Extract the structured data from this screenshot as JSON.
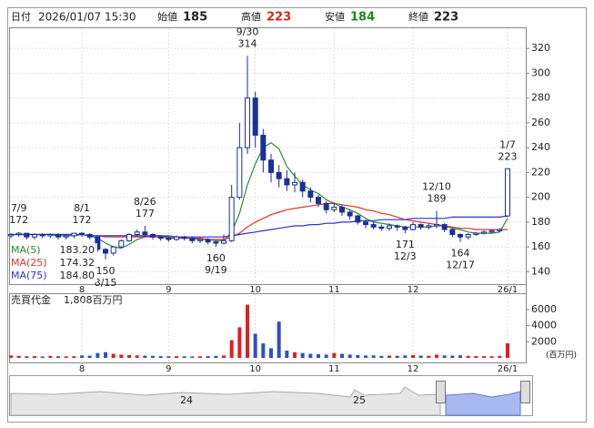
{
  "header": {
    "date_label": "日付",
    "datetime": "2026/01/07 15:30",
    "open_label": "始値",
    "open": 185,
    "high_label": "高値",
    "high": 223,
    "low_label": "安値",
    "low": 184,
    "close_label": "終値",
    "close": 223
  },
  "chart_data": {
    "type": "candlestick",
    "categories": [
      null,
      null,
      null,
      null,
      null,
      null,
      null,
      null,
      null,
      "8",
      null,
      null,
      null,
      null,
      null,
      null,
      null,
      null,
      null,
      null,
      "9",
      null,
      null,
      null,
      null,
      null,
      null,
      null,
      null,
      null,
      null,
      "10",
      null,
      null,
      null,
      null,
      null,
      null,
      null,
      null,
      null,
      "11",
      null,
      null,
      null,
      null,
      null,
      null,
      null,
      null,
      null,
      "12",
      null,
      null,
      null,
      null,
      null,
      null,
      null,
      null,
      null,
      null,
      null,
      "26/1"
    ],
    "open": [
      169,
      170,
      171,
      168,
      170,
      169,
      170,
      168,
      169,
      171,
      170,
      168,
      158,
      155,
      160,
      165,
      170,
      172,
      170,
      168,
      167,
      166,
      168,
      167,
      165,
      166,
      164,
      163,
      165,
      200,
      240,
      280,
      250,
      230,
      220,
      215,
      210,
      212,
      205,
      200,
      195,
      190,
      192,
      188,
      185,
      180,
      178,
      176,
      175,
      177,
      176,
      174,
      178,
      176,
      177,
      178,
      174,
      170,
      168,
      170,
      171,
      172,
      173,
      185
    ],
    "high": [
      171,
      172,
      171,
      171,
      171,
      171,
      171,
      170,
      171,
      172,
      171,
      169,
      159,
      161,
      166,
      171,
      174,
      177,
      171,
      169,
      168,
      169,
      169,
      168,
      167,
      167,
      165,
      170,
      210,
      260,
      314,
      285,
      255,
      235,
      226,
      222,
      220,
      214,
      208,
      202,
      197,
      196,
      194,
      190,
      186,
      182,
      180,
      178,
      179,
      178,
      177,
      180,
      179,
      179,
      189,
      179,
      175,
      171,
      171,
      172,
      173,
      174,
      175,
      223
    ],
    "low": [
      167,
      168,
      166,
      166,
      167,
      167,
      166,
      166,
      167,
      168,
      166,
      156,
      150,
      153,
      159,
      164,
      169,
      168,
      166,
      165,
      164,
      165,
      165,
      163,
      163,
      162,
      160,
      162,
      164,
      198,
      235,
      240,
      220,
      212,
      208,
      205,
      204,
      200,
      196,
      192,
      187,
      188,
      185,
      182,
      178,
      175,
      174,
      173,
      173,
      173,
      171,
      173,
      174,
      174,
      175,
      172,
      168,
      164,
      166,
      169,
      170,
      171,
      172,
      184
    ],
    "close": [
      170,
      171,
      168,
      170,
      169,
      170,
      168,
      169,
      171,
      170,
      168,
      158,
      155,
      160,
      165,
      170,
      172,
      170,
      168,
      167,
      166,
      168,
      167,
      165,
      166,
      164,
      163,
      165,
      200,
      240,
      280,
      250,
      230,
      220,
      215,
      210,
      212,
      205,
      200,
      195,
      190,
      192,
      188,
      185,
      180,
      178,
      176,
      175,
      177,
      176,
      174,
      178,
      176,
      177,
      178,
      174,
      170,
      168,
      170,
      171,
      172,
      173,
      174,
      223
    ],
    "candle_color": "#1a2f9a",
    "up_color": "#e02020",
    "ylim": [
      130,
      337
    ],
    "yticks": [
      140,
      160,
      180,
      200,
      220,
      240,
      260,
      280,
      300,
      320
    ],
    "ma": [
      {
        "name": "MA(5)",
        "legend_value": "183.20",
        "color": "#2e8b2e",
        "values": [
          170,
          170,
          170,
          170,
          170,
          170,
          169,
          169,
          169,
          170,
          169,
          167,
          163,
          160,
          159,
          162,
          166,
          168,
          169,
          169,
          169,
          168,
          167,
          167,
          166,
          166,
          165,
          165,
          172,
          187,
          210,
          227,
          240,
          244,
          239,
          225,
          217,
          210,
          206,
          203,
          198,
          195,
          192,
          190,
          187,
          183,
          180,
          179,
          178,
          177,
          176,
          176,
          176,
          176,
          177,
          177,
          175,
          174,
          172,
          171,
          171,
          171,
          172,
          183
        ]
      },
      {
        "name": "MA(25)",
        "legend_value": "174.32",
        "color": "#e03030",
        "values": [
          170,
          170,
          170,
          170,
          170,
          170,
          170,
          170,
          170,
          170,
          169,
          169,
          168,
          168,
          168,
          168,
          168,
          168,
          168,
          168,
          167,
          167,
          167,
          167,
          167,
          166,
          166,
          166,
          168,
          171,
          176,
          180,
          183,
          186,
          188,
          190,
          191,
          192,
          193,
          194,
          195,
          195,
          194,
          193,
          192,
          190,
          189,
          187,
          186,
          184,
          182,
          181,
          180,
          179,
          178,
          177,
          176,
          175,
          175,
          174,
          174,
          174,
          174,
          174
        ]
      },
      {
        "name": "MA(75)",
        "legend_value": "184.80",
        "color": "#3030d0",
        "values": [
          170,
          170,
          170,
          170,
          170,
          170,
          170,
          170,
          170,
          170,
          169,
          169,
          169,
          169,
          169,
          169,
          169,
          169,
          169,
          169,
          168,
          168,
          168,
          168,
          168,
          168,
          168,
          168,
          169,
          170,
          171,
          172,
          173,
          174,
          175,
          176,
          177,
          177,
          178,
          178,
          179,
          179,
          180,
          180,
          181,
          181,
          181,
          182,
          182,
          182,
          182,
          183,
          183,
          183,
          183,
          183,
          184,
          184,
          184,
          184,
          184,
          184,
          184,
          185
        ]
      }
    ],
    "annotations": [
      {
        "date": "7/9",
        "value": 172,
        "at": "high"
      },
      {
        "date": "8/1",
        "value": 172,
        "at": "high"
      },
      {
        "date": "8/15",
        "value": 150,
        "at": "low"
      },
      {
        "date": "8/26",
        "value": 177,
        "at": "high"
      },
      {
        "date": "9/19",
        "value": 160,
        "at": "low"
      },
      {
        "date": "9/30",
        "value": 314,
        "at": "high"
      },
      {
        "date": "12/3",
        "value": 171,
        "at": "low"
      },
      {
        "date": "12/10",
        "value": 189,
        "at": "high"
      },
      {
        "date": "12/17",
        "value": 164,
        "at": "low"
      },
      {
        "date": "1/7",
        "value": 223,
        "at": "high"
      }
    ],
    "volume": {
      "title": "売買代金",
      "last_label": "1,808百万円",
      "unit": "(百万円)",
      "values": [
        300,
        250,
        200,
        220,
        180,
        250,
        200,
        190,
        210,
        300,
        280,
        600,
        700,
        500,
        400,
        350,
        300,
        280,
        250,
        220,
        200,
        220,
        190,
        180,
        200,
        220,
        250,
        300,
        2200,
        3800,
        6600,
        3000,
        1800,
        1200,
        4500,
        900,
        700,
        600,
        500,
        450,
        400,
        600,
        500,
        400,
        350,
        300,
        300,
        250,
        280,
        260,
        300,
        350,
        280,
        260,
        400,
        300,
        280,
        320,
        250,
        230,
        220,
        200,
        240,
        1808
      ],
      "ylim": [
        0,
        7800
      ],
      "yticks": [
        2000,
        4000,
        6000
      ]
    },
    "navigator": {
      "labels": [
        "24",
        "25"
      ]
    }
  }
}
